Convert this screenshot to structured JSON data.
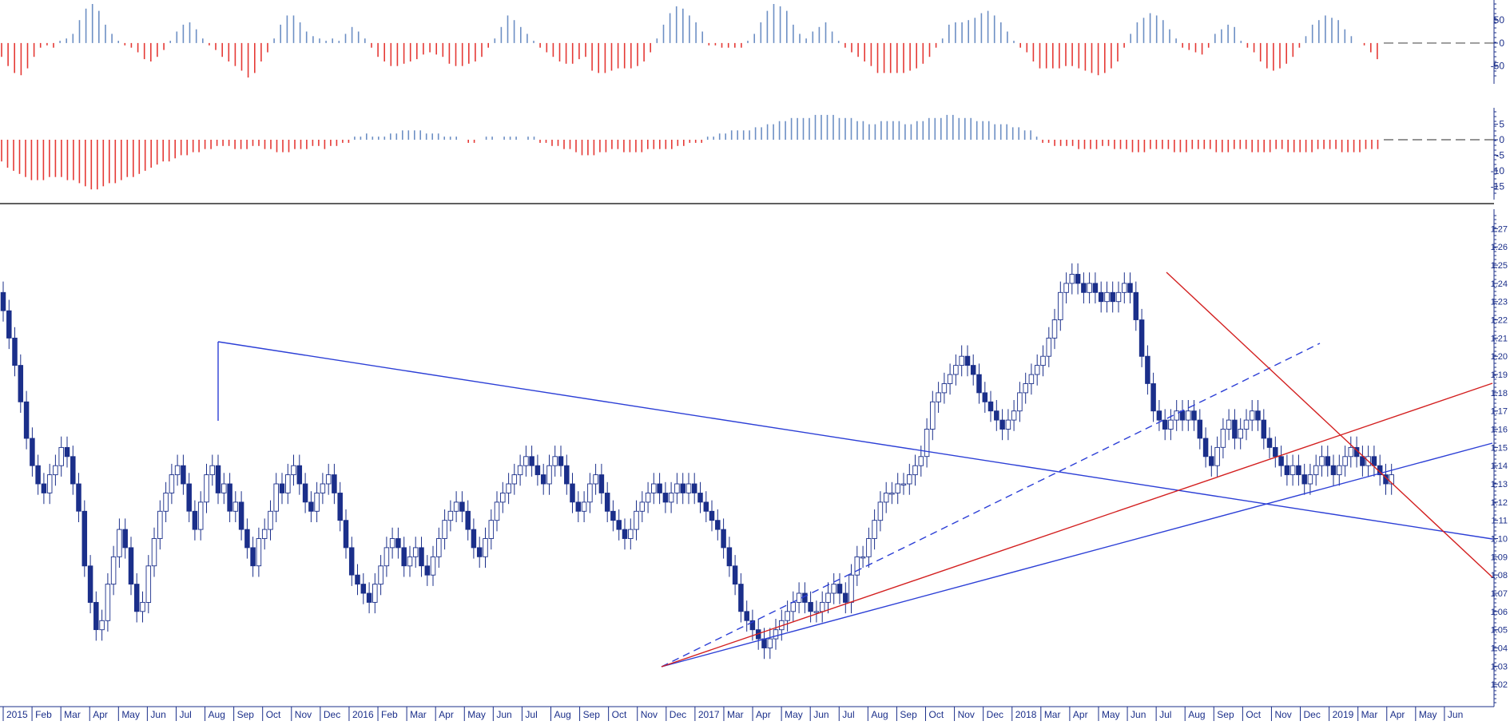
{
  "chart_data": [
    {
      "type": "bar",
      "panel": "oscillator-upper",
      "y_ticks": [
        "50",
        "0",
        "-50"
      ],
      "ylim": [
        -80,
        85
      ],
      "zero_line": "dashed",
      "colors": {
        "positive": "#6d8fc4",
        "negative": "#e53935"
      },
      "series": [
        {
          "values": [
            -30,
            -50,
            -65,
            -70,
            -55,
            -30,
            -10,
            -5,
            -10,
            5,
            10,
            20,
            50,
            75,
            85,
            70,
            40,
            20,
            5,
            -5,
            -10,
            -20,
            -35,
            -40,
            -30,
            -15,
            5,
            25,
            40,
            45,
            30,
            10,
            -5,
            -15,
            -30,
            -40,
            -50,
            -60,
            -75,
            -65,
            -40,
            -20,
            10,
            40,
            60,
            60,
            45,
            25,
            15,
            10,
            5,
            10,
            5,
            20,
            35,
            25,
            10,
            -10,
            -30,
            -40,
            -50,
            -50,
            -45,
            -40,
            -35,
            -25,
            -20,
            -25,
            -30,
            -45,
            -50,
            -50,
            -45,
            -40,
            -30,
            -10,
            10,
            35,
            60,
            50,
            35,
            20,
            5,
            -10,
            -20,
            -30,
            -40,
            -45,
            -45,
            -35,
            -30,
            -60,
            -65,
            -65,
            -60,
            -55,
            -55,
            -55,
            -50,
            -40,
            -20,
            10,
            40,
            65,
            80,
            75,
            60,
            45,
            25,
            -5,
            -5,
            -10,
            -10,
            -10,
            -10,
            5,
            20,
            45,
            70,
            85,
            80,
            70,
            40,
            20,
            10,
            25,
            35,
            45,
            25,
            5,
            -10,
            -20,
            -30,
            -40,
            -50,
            -65,
            -65,
            -65,
            -65,
            -65,
            -60,
            -55,
            -45,
            -30,
            -10,
            10,
            40,
            45,
            45,
            50,
            55,
            65,
            70,
            60,
            45,
            25,
            5,
            -10,
            -20,
            -40,
            -55,
            -55,
            -55,
            -55,
            -50,
            -50,
            -55,
            -60,
            -65,
            -70,
            -65,
            -55,
            -40,
            -10,
            20,
            45,
            55,
            65,
            60,
            50,
            30,
            10,
            -10,
            -15,
            -20,
            -25,
            -10,
            20,
            30,
            40,
            35,
            5,
            -10,
            -20,
            -40,
            -55,
            -60,
            -55,
            -45,
            -30,
            -10,
            15,
            40,
            50,
            60,
            55,
            50,
            30,
            15,
            0,
            -5,
            -20,
            -35
          ]
        }
      ]
    },
    {
      "type": "bar",
      "panel": "oscillator-lower",
      "y_ticks": [
        "5",
        "0",
        "-5",
        "-10",
        "-15"
      ],
      "ylim": [
        -18,
        9
      ],
      "zero_line": "dashed",
      "colors": {
        "positive": "#6d8fc4",
        "negative": "#e53935"
      },
      "series": [
        {
          "values": [
            -7,
            -9,
            -10,
            -11,
            -12,
            -13,
            -13,
            -13,
            -12,
            -12,
            -12,
            -13,
            -13,
            -14,
            -15,
            -16,
            -16,
            -15,
            -14,
            -14,
            -13,
            -12,
            -12,
            -11,
            -10,
            -9,
            -8,
            -7,
            -7,
            -6,
            -5,
            -5,
            -4,
            -4,
            -3,
            -3,
            -2,
            -2,
            -2,
            -3,
            -3,
            -3,
            -2,
            -2,
            -3,
            -3,
            -4,
            -4,
            -4,
            -3,
            -3,
            -3,
            -2,
            -2,
            -3,
            -2,
            -2,
            -1,
            -1,
            1,
            1,
            2,
            1,
            1,
            1,
            2,
            2,
            3,
            3,
            3,
            3,
            2,
            2,
            2,
            1,
            1,
            1,
            0,
            -1,
            -1,
            0,
            1,
            1,
            0,
            1,
            1,
            1,
            0,
            1,
            1,
            -1,
            -1,
            -2,
            -2,
            -3,
            -3,
            -4,
            -5,
            -5,
            -5,
            -4,
            -4,
            -3,
            -3,
            -4,
            -4,
            -4,
            -4,
            -3,
            -3,
            -3,
            -3,
            -3,
            -2,
            -2,
            -1,
            -1,
            -1,
            1,
            1,
            2,
            2,
            3,
            3,
            3,
            3,
            4,
            4,
            5,
            5,
            6,
            6,
            7,
            7,
            7,
            7,
            8,
            8,
            8,
            8,
            7,
            7,
            7,
            6,
            6,
            5,
            5,
            6,
            6,
            6,
            6,
            5,
            5,
            6,
            6,
            7,
            7,
            7,
            8,
            8,
            7,
            7,
            7,
            6,
            6,
            6,
            5,
            5,
            5,
            4,
            4,
            3,
            3,
            1,
            -1,
            -1,
            -2,
            -2,
            -2,
            -2,
            -3,
            -3,
            -3,
            -3,
            -2,
            -2,
            -3,
            -3,
            -3,
            -4,
            -4,
            -4,
            -3,
            -3,
            -3,
            -3,
            -4,
            -4,
            -4,
            -3,
            -3,
            -3,
            -3,
            -4,
            -4,
            -4,
            -3,
            -3,
            -3,
            -4,
            -4,
            -4,
            -4,
            -3,
            -3,
            -4,
            -4,
            -4,
            -4,
            -4,
            -3,
            -3,
            -3,
            -3,
            -4,
            -4,
            -4,
            -4,
            -3,
            -3,
            -3
          ]
        }
      ]
    },
    {
      "type": "candlestick",
      "panel": "price",
      "ylim": [
        1.01,
        1.275
      ],
      "y_ticks": [
        "1.27",
        "1.26",
        "1.25",
        "1.24",
        "1.23",
        "1.22",
        "1.21",
        "1.20",
        "1.19",
        "1.18",
        "1.17",
        "1.16",
        "1.15",
        "1.14",
        "1.13",
        "1.12",
        "1.11",
        "1.10",
        "1.09",
        "1.08",
        "1.07",
        "1.06",
        "1.05",
        "1.04",
        "1.03",
        "1.02"
      ],
      "x_labels": [
        "2015",
        "Feb",
        "Mar",
        "Apr",
        "May",
        "Jun",
        "Jul",
        "Aug",
        "Sep",
        "Oct",
        "Nov",
        "Dec",
        "2016",
        "Feb",
        "Mar",
        "Apr",
        "May",
        "Jun",
        "Jul",
        "Aug",
        "Sep",
        "Oct",
        "Nov",
        "Dec",
        "2017",
        "Mar",
        "Apr",
        "May",
        "Jun",
        "Jul",
        "Aug",
        "Sep",
        "Oct",
        "Nov",
        "Dec",
        "2018",
        "Mar",
        "Apr",
        "May",
        "Jun",
        "Jul",
        "Aug",
        "Sep",
        "Oct",
        "Nov",
        "Dec",
        "2019",
        "Mar",
        "Apr",
        "May",
        "Jun"
      ],
      "colors": {
        "bull": "#ffffff",
        "bear": "#1b2f8a",
        "outline": "#1b2f8a"
      },
      "closes": [
        1.225,
        1.21,
        1.195,
        1.175,
        1.155,
        1.14,
        1.13,
        1.125,
        1.135,
        1.14,
        1.15,
        1.145,
        1.13,
        1.115,
        1.085,
        1.065,
        1.05,
        1.055,
        1.075,
        1.09,
        1.105,
        1.095,
        1.075,
        1.06,
        1.065,
        1.085,
        1.1,
        1.115,
        1.125,
        1.135,
        1.14,
        1.13,
        1.115,
        1.105,
        1.12,
        1.135,
        1.14,
        1.125,
        1.13,
        1.115,
        1.12,
        1.105,
        1.095,
        1.085,
        1.1,
        1.105,
        1.115,
        1.13,
        1.125,
        1.135,
        1.14,
        1.13,
        1.12,
        1.115,
        1.125,
        1.13,
        1.135,
        1.125,
        1.11,
        1.095,
        1.08,
        1.075,
        1.07,
        1.065,
        1.075,
        1.085,
        1.095,
        1.1,
        1.095,
        1.085,
        1.09,
        1.095,
        1.085,
        1.08,
        1.09,
        1.1,
        1.11,
        1.115,
        1.12,
        1.115,
        1.105,
        1.095,
        1.09,
        1.1,
        1.11,
        1.12,
        1.125,
        1.13,
        1.135,
        1.14,
        1.145,
        1.14,
        1.135,
        1.13,
        1.14,
        1.145,
        1.14,
        1.13,
        1.12,
        1.115,
        1.12,
        1.13,
        1.135,
        1.125,
        1.115,
        1.11,
        1.105,
        1.1,
        1.105,
        1.115,
        1.12,
        1.125,
        1.13,
        1.125,
        1.12,
        1.125,
        1.13,
        1.125,
        1.13,
        1.125,
        1.12,
        1.115,
        1.11,
        1.105,
        1.095,
        1.085,
        1.075,
        1.06,
        1.055,
        1.05,
        1.045,
        1.04,
        1.045,
        1.05,
        1.055,
        1.06,
        1.065,
        1.07,
        1.065,
        1.06,
        1.06,
        1.065,
        1.07,
        1.075,
        1.07,
        1.065,
        1.08,
        1.09,
        1.09,
        1.1,
        1.11,
        1.12,
        1.125,
        1.125,
        1.13,
        1.13,
        1.135,
        1.14,
        1.145,
        1.16,
        1.175,
        1.18,
        1.185,
        1.19,
        1.195,
        1.2,
        1.195,
        1.19,
        1.18,
        1.175,
        1.17,
        1.165,
        1.16,
        1.165,
        1.17,
        1.18,
        1.185,
        1.19,
        1.195,
        1.2,
        1.21,
        1.22,
        1.235,
        1.24,
        1.245,
        1.24,
        1.235,
        1.24,
        1.235,
        1.23,
        1.235,
        1.23,
        1.235,
        1.24,
        1.235,
        1.22,
        1.2,
        1.185,
        1.17,
        1.165,
        1.16,
        1.165,
        1.17,
        1.165,
        1.17,
        1.165,
        1.155,
        1.145,
        1.14,
        1.15,
        1.16,
        1.165,
        1.155,
        1.16,
        1.165,
        1.17,
        1.165,
        1.155,
        1.15,
        1.145,
        1.14,
        1.135,
        1.14,
        1.135,
        1.13,
        1.135,
        1.14,
        1.145,
        1.14,
        1.135,
        1.14,
        1.145,
        1.15,
        1.145,
        1.14,
        1.145,
        1.14,
        1.135,
        1.13,
        1.135
      ]
    }
  ]
}
